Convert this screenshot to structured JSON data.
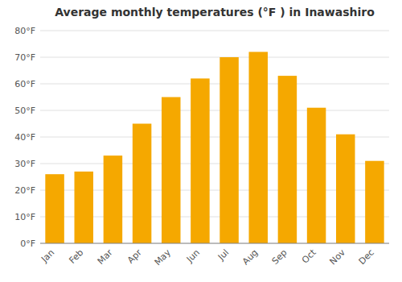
{
  "chart_data": {
    "type": "bar",
    "title": "Average monthly temperatures (°F ) in Inawashiro",
    "categories": [
      "Jan",
      "Feb",
      "Mar",
      "Apr",
      "May",
      "Jun",
      "Jul",
      "Aug",
      "Sep",
      "Oct",
      "Nov",
      "Dec"
    ],
    "values": [
      26,
      27,
      33,
      45,
      55,
      62,
      70,
      72,
      63,
      51,
      41,
      31
    ],
    "color": "#F5A800",
    "ylim": [
      0,
      80
    ],
    "yticks": [
      {
        "value": 0,
        "label": "0°F"
      },
      {
        "value": 10,
        "label": "10°F"
      },
      {
        "value": 20,
        "label": "20°F"
      },
      {
        "value": 30,
        "label": "30°F"
      },
      {
        "value": 40,
        "label": "40°F"
      },
      {
        "value": 50,
        "label": "50°F"
      },
      {
        "value": 60,
        "label": "60°F"
      },
      {
        "value": 70,
        "label": "70°F"
      },
      {
        "value": 80,
        "label": "80°F"
      }
    ],
    "grid": true
  }
}
